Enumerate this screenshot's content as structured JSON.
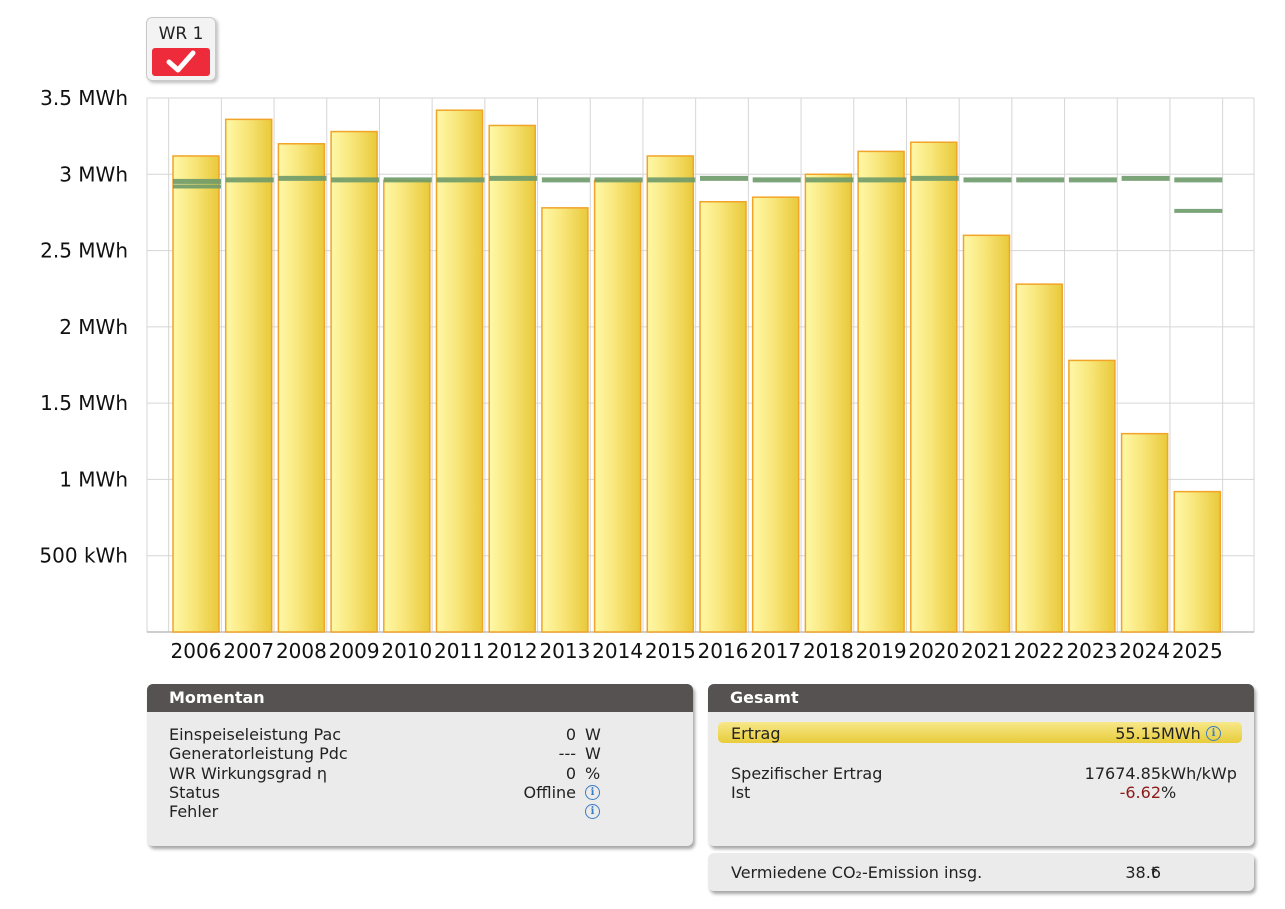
{
  "inverter_button": {
    "label": "WR 1",
    "checked": true
  },
  "chart_data": {
    "type": "bar",
    "categories": [
      "2006",
      "2007",
      "2008",
      "2009",
      "2010",
      "2011",
      "2012",
      "2013",
      "2014",
      "2015",
      "2016",
      "2017",
      "2018",
      "2019",
      "2020",
      "2021",
      "2022",
      "2023",
      "2024",
      "2025"
    ],
    "series": [
      {
        "values": [
          3.12,
          3.36,
          3.2,
          3.28,
          2.96,
          3.42,
          3.32,
          2.78,
          2.96,
          3.12,
          2.82,
          2.85,
          3.0,
          3.15,
          3.21,
          2.6,
          2.28,
          1.78,
          1.3,
          0.92
        ],
        "color": "#f7e45c"
      },
      {
        "values": [
          2.95,
          2.96,
          2.97,
          2.96,
          2.96,
          2.96,
          2.97,
          2.96,
          2.96,
          2.96,
          2.97,
          2.96,
          2.96,
          2.96,
          2.97,
          2.96,
          2.96,
          2.96,
          2.97,
          2.96
        ],
        "color": "#6e9a6a"
      }
    ],
    "extra_markers": [
      {
        "category": "2006",
        "value": 2.92
      },
      {
        "category": "2025",
        "value": 2.76
      }
    ],
    "y_unit": "MWh",
    "ylim": [
      0,
      3.5
    ],
    "yticks": [
      {
        "value": 0.5,
        "label": "500 kWh"
      },
      {
        "value": 1.0,
        "label": "1 MWh"
      },
      {
        "value": 1.5,
        "label": "1.5 MWh"
      },
      {
        "value": 2.0,
        "label": "2 MWh"
      },
      {
        "value": 2.5,
        "label": "2.5 MWh"
      },
      {
        "value": 3.0,
        "label": "3 MWh"
      },
      {
        "value": 3.5,
        "label": "3.5 MWh"
      }
    ],
    "grid": true
  },
  "momentan": {
    "title": "Momentan",
    "rows": [
      {
        "label": "Einspeiseleistung Pac",
        "value": "0",
        "unit": "W"
      },
      {
        "label": "Generatorleistung Pdc",
        "value": "---",
        "unit": "W"
      },
      {
        "label": "WR Wirkungsgrad η",
        "value": "0",
        "unit": "%"
      },
      {
        "label": "Status",
        "value": "Offline",
        "unit": ""
      },
      {
        "label": "Fehler",
        "value": "",
        "unit": ""
      }
    ]
  },
  "gesamt": {
    "title": "Gesamt",
    "ertrag": {
      "label": "Ertrag",
      "value": "55.15",
      "unit": "MWh"
    },
    "spezifisch": {
      "label": "Spezifischer Ertrag",
      "value": "17674.85",
      "unit": "kWh/kWp"
    },
    "ist": {
      "label": "Ist",
      "value": "-6.62",
      "unit": "%"
    }
  },
  "co2": {
    "label": "Vermiedene CO₂-Emission insg.",
    "value": "38.6",
    "unit": "t"
  },
  "colors": {
    "bar_fill": "#f7e45c",
    "bar_stroke": "#f0a020",
    "target_line": "#6e9a6a",
    "negative": "#8b1a1a",
    "panel_head": "#575252"
  }
}
